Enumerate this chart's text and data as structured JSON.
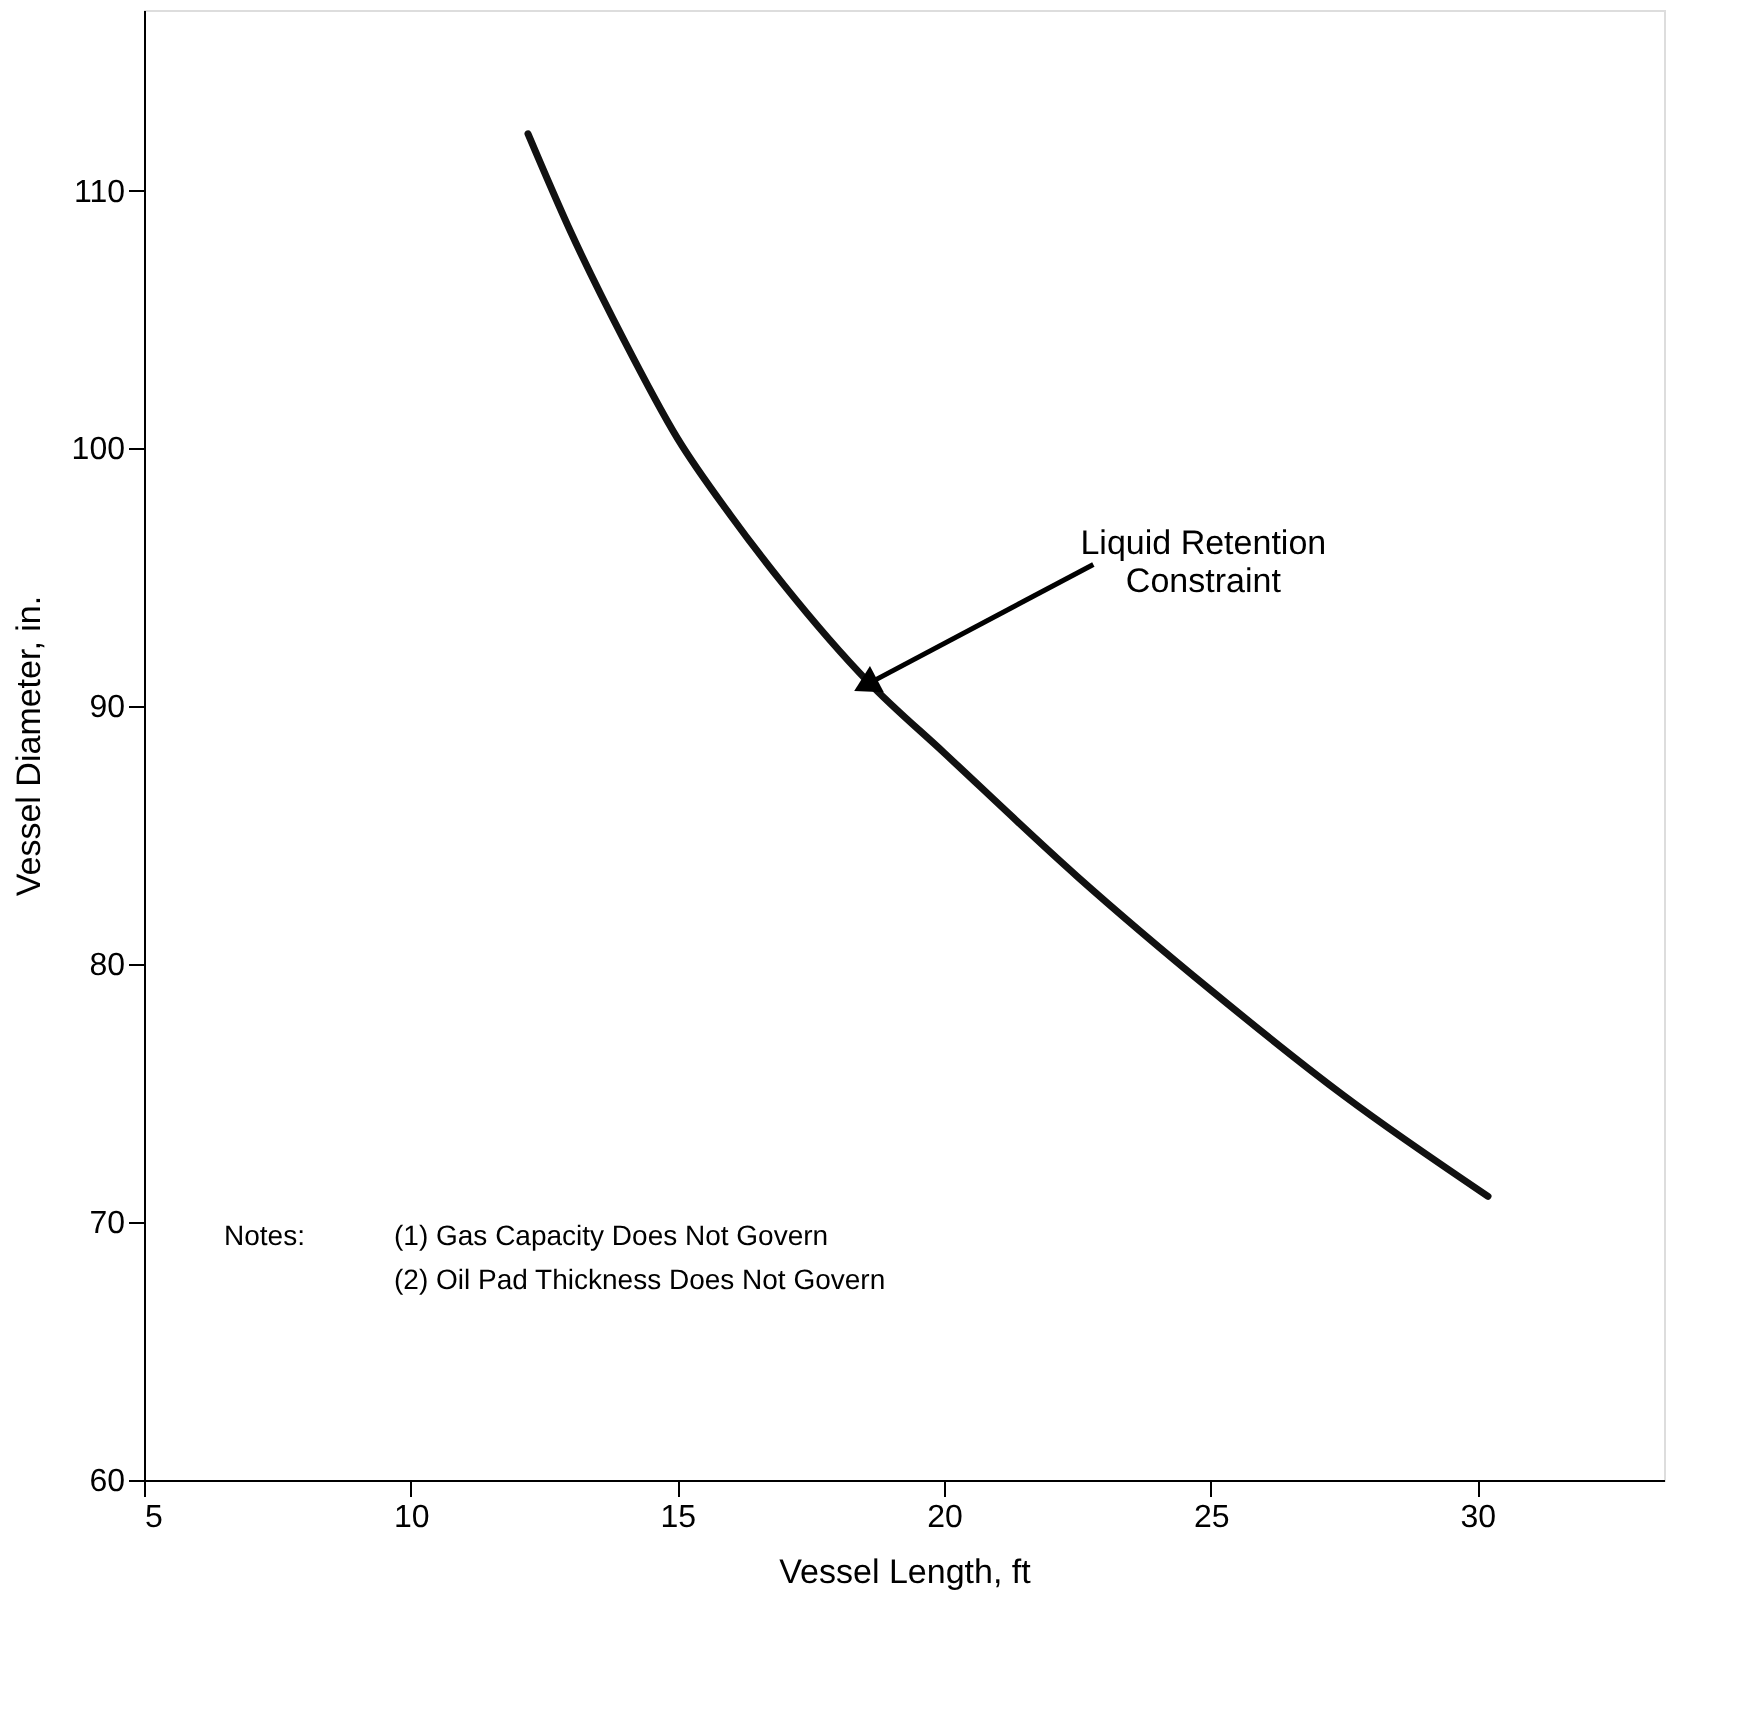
{
  "chart_data": {
    "type": "line",
    "xlabel": "Vessel Length, ft",
    "ylabel": "Vessel Diameter, in.",
    "x": [
      12.2,
      13,
      14,
      15,
      16,
      17,
      18.6,
      20,
      22.5,
      25,
      27.5,
      30.2
    ],
    "series": [
      {
        "color": "#111111",
        "values": [
          112.2,
          108.4,
          104.2,
          100.4,
          97.4,
          94.7,
          90.9,
          88.2,
          83.4,
          79.0,
          74.9,
          71.0
        ]
      }
    ],
    "xlim": [
      5,
      33.5
    ],
    "ylim": [
      60,
      117
    ],
    "xticks": [
      5,
      10,
      15,
      20,
      25,
      30
    ],
    "yticks": [
      60,
      70,
      80,
      90,
      100,
      110
    ],
    "grid": false,
    "marker": "none",
    "line_style": "solid",
    "annotations": [
      {
        "text": "Liquid Retention\nConstraint",
        "x": 18.6,
        "y": 90.9
      },
      "Notes:",
      "(1) Gas Capacity Does Not Govern",
      "(2) Oil Pad Thickness Does Not Govern"
    ]
  }
}
